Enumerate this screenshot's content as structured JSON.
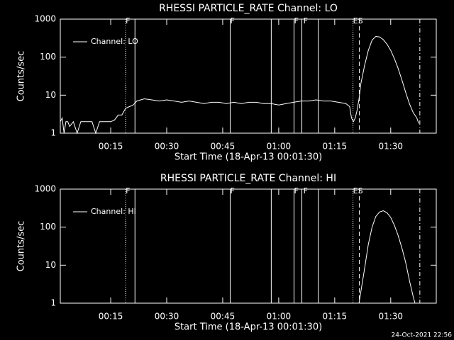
{
  "chart_data": [
    {
      "type": "line",
      "title": "RHESSI PARTICLE_RATE Channel: LO",
      "x_label": "Start Time (18-Apr-13 00:01:30)",
      "y_label": "Counts/sec",
      "log_y": true,
      "xlim": [
        1.5,
        102.2
      ],
      "ylim": [
        1,
        1000
      ],
      "xticks": [
        {
          "value": 15,
          "label": "00:15"
        },
        {
          "value": 30,
          "label": "00:30"
        },
        {
          "value": 45,
          "label": "00:45"
        },
        {
          "value": 60,
          "label": "01:00"
        },
        {
          "value": 75,
          "label": "01:15"
        },
        {
          "value": 90,
          "label": "01:30"
        }
      ],
      "yticks": [
        1,
        10,
        100,
        1000
      ],
      "vlines": [
        {
          "x": 19.0,
          "style": "dotted"
        },
        {
          "x": 21.5,
          "style": "solid"
        },
        {
          "x": 47.0,
          "style": "solid"
        },
        {
          "x": 58.0,
          "style": "solid"
        },
        {
          "x": 64.1,
          "style": "solid"
        },
        {
          "x": 66.2,
          "style": "solid"
        },
        {
          "x": 70.6,
          "style": "solid"
        },
        {
          "x": 79.9,
          "style": "dotted"
        },
        {
          "x": 81.6,
          "style": "dashed"
        },
        {
          "x": 97.8,
          "style": "dashdot"
        }
      ],
      "flags": [
        {
          "x": 19.0,
          "label": "F"
        },
        {
          "x": 47.0,
          "label": "F"
        },
        {
          "x": 64.1,
          "label": "F"
        },
        {
          "x": 66.6,
          "label": "F"
        },
        {
          "x": 79.9,
          "label": "ES"
        }
      ],
      "series": [
        {
          "name": "Channel: LO",
          "color": "#ffffff",
          "x": [
            1.5,
            2,
            2.5,
            3,
            3.5,
            4,
            5,
            6,
            7,
            8,
            9,
            10,
            11,
            12,
            13,
            14,
            15,
            16,
            17,
            18,
            19,
            20,
            21,
            22,
            24,
            26,
            28,
            30,
            32,
            34,
            36,
            38,
            40,
            42,
            44,
            46,
            48,
            50,
            52,
            54,
            56,
            58,
            60,
            62,
            64,
            66,
            68,
            70,
            72,
            74,
            76,
            78,
            79,
            79.5,
            80,
            80.5,
            81,
            81.5,
            82,
            83,
            84,
            85,
            86,
            87,
            88,
            89,
            90,
            91,
            92,
            93,
            94,
            95,
            96,
            97,
            97.5
          ],
          "values": [
            2,
            2.5,
            1,
            2,
            2,
            1.5,
            2,
            1,
            2,
            2,
            2,
            2,
            1,
            2,
            2,
            2,
            2,
            2.2,
            3,
            3,
            4.5,
            5,
            5.5,
            7,
            8,
            7.5,
            7,
            7.5,
            7,
            6.5,
            7,
            6.5,
            6,
            6.5,
            6.5,
            6,
            6.5,
            6,
            6.5,
            6.5,
            6,
            6,
            5.5,
            6,
            6.5,
            7,
            7,
            7.5,
            7,
            7,
            6.5,
            6,
            5,
            2.5,
            2,
            2.5,
            4,
            8,
            20,
            60,
            150,
            280,
            350,
            340,
            290,
            220,
            150,
            90,
            50,
            25,
            12,
            6,
            3.5,
            2.5,
            1.8
          ]
        }
      ]
    },
    {
      "type": "line",
      "title": "RHESSI PARTICLE_RATE Channel: HI",
      "x_label": "Start Time (18-Apr-13 00:01:30)",
      "y_label": "Counts/sec",
      "log_y": true,
      "xlim": [
        1.5,
        102.2
      ],
      "ylim": [
        1,
        1000
      ],
      "xticks": [
        {
          "value": 15,
          "label": "00:15"
        },
        {
          "value": 30,
          "label": "00:30"
        },
        {
          "value": 45,
          "label": "00:45"
        },
        {
          "value": 60,
          "label": "01:00"
        },
        {
          "value": 75,
          "label": "01:15"
        },
        {
          "value": 90,
          "label": "01:30"
        }
      ],
      "yticks": [
        1,
        10,
        100,
        1000
      ],
      "vlines": [
        {
          "x": 19.0,
          "style": "dotted"
        },
        {
          "x": 21.5,
          "style": "solid"
        },
        {
          "x": 47.0,
          "style": "solid"
        },
        {
          "x": 58.0,
          "style": "solid"
        },
        {
          "x": 64.1,
          "style": "solid"
        },
        {
          "x": 66.2,
          "style": "solid"
        },
        {
          "x": 70.6,
          "style": "solid"
        },
        {
          "x": 79.9,
          "style": "dotted"
        },
        {
          "x": 81.6,
          "style": "dashed"
        },
        {
          "x": 97.8,
          "style": "dashdot"
        }
      ],
      "flags": [
        {
          "x": 19.0,
          "label": "F"
        },
        {
          "x": 47.0,
          "label": "F"
        },
        {
          "x": 64.1,
          "label": "F"
        },
        {
          "x": 66.6,
          "label": "F"
        },
        {
          "x": 79.9,
          "label": "ES"
        }
      ],
      "series": [
        {
          "name": "Channel: HI",
          "color": "#ffffff",
          "x": [
            81.5,
            82,
            83,
            84,
            85,
            86,
            87,
            88,
            89,
            90,
            91,
            92,
            93,
            94,
            95,
            96,
            96.5
          ],
          "values": [
            1,
            2,
            8,
            35,
            100,
            190,
            250,
            270,
            240,
            180,
            110,
            60,
            28,
            12,
            4,
            1.5,
            1
          ]
        }
      ]
    }
  ],
  "footer": "24-Oct-2021 22:56"
}
